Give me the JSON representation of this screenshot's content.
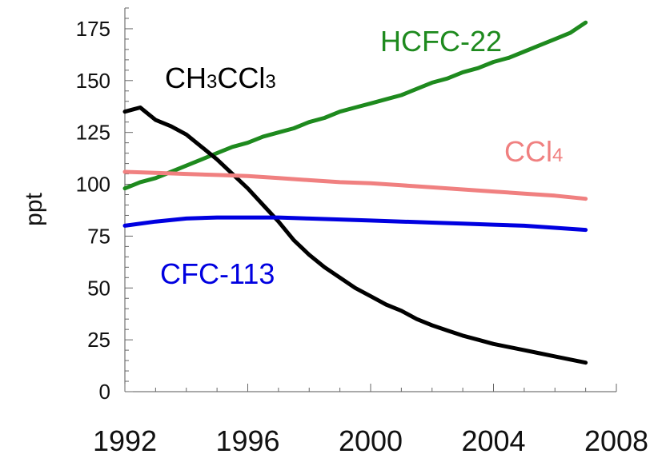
{
  "chart_data": {
    "type": "line",
    "title": "",
    "xlabel": "",
    "ylabel": "ppt",
    "xlim": [
      1992,
      2008
    ],
    "ylim": [
      0,
      185
    ],
    "xticks": [
      1992,
      1996,
      2000,
      2004,
      2008
    ],
    "yticks": [
      0,
      25,
      50,
      75,
      100,
      125,
      150,
      175
    ],
    "grid": false,
    "legend": "direct labels",
    "series": [
      {
        "name": "HCFC-22",
        "label_parts": [
          {
            "text": "HCFC-22",
            "sub": false
          }
        ],
        "color": "#1e8a1e",
        "x": [
          1992,
          1992.5,
          1993,
          1993.5,
          1994,
          1994.5,
          1995,
          1995.5,
          1996,
          1996.5,
          1997,
          1997.5,
          1998,
          1998.5,
          1999,
          1999.5,
          2000,
          2000.5,
          2001,
          2001.5,
          2002,
          2002.5,
          2003,
          2003.5,
          2004,
          2004.5,
          2005,
          2005.5,
          2006,
          2006.5,
          2007
        ],
        "y": [
          98,
          101,
          103,
          106,
          109,
          112,
          115,
          118,
          120,
          123,
          125,
          127,
          130,
          132,
          135,
          137,
          139,
          141,
          143,
          146,
          149,
          151,
          154,
          156,
          159,
          161,
          164,
          167,
          170,
          173,
          178
        ]
      },
      {
        "name": "CH3CCl3",
        "label_parts": [
          {
            "text": "CH",
            "sub": false
          },
          {
            "text": "3",
            "sub": true
          },
          {
            "text": "CCl",
            "sub": false
          },
          {
            "text": "3",
            "sub": true
          }
        ],
        "color": "#000000",
        "x": [
          1992,
          1992.25,
          1992.5,
          1992.75,
          1993,
          1993.5,
          1994,
          1994.5,
          1995,
          1995.5,
          1996,
          1996.5,
          1997,
          1997.5,
          1998,
          1998.5,
          1999,
          1999.5,
          2000,
          2000.5,
          2001,
          2001.5,
          2002,
          2002.5,
          2003,
          2003.5,
          2004,
          2004.5,
          2005,
          2005.5,
          2006,
          2006.5,
          2007
        ],
        "y": [
          135,
          136,
          137,
          134,
          131,
          128,
          124,
          118,
          112,
          105,
          98,
          90,
          82,
          73,
          66,
          60,
          55,
          50,
          46,
          42,
          39,
          35,
          32,
          29.5,
          27,
          25,
          23,
          21.5,
          20,
          18.5,
          17,
          15.5,
          14
        ]
      },
      {
        "name": "CCl4",
        "label_parts": [
          {
            "text": "CCl",
            "sub": false
          },
          {
            "text": "4",
            "sub": true
          }
        ],
        "color": "#f08080",
        "x": [
          1992,
          1993,
          1994,
          1995,
          1996,
          1997,
          1998,
          1999,
          2000,
          2001,
          2002,
          2003,
          2004,
          2005,
          2006,
          2007
        ],
        "y": [
          106,
          105.5,
          105,
          104.5,
          104,
          103,
          102,
          101,
          100.5,
          99.5,
          98.5,
          97.5,
          96.5,
          95.5,
          94.5,
          93
        ]
      },
      {
        "name": "CFC-113",
        "label_parts": [
          {
            "text": "CFC-113",
            "sub": false
          }
        ],
        "color": "#0000e0",
        "x": [
          1992,
          1993,
          1994,
          1995,
          1996,
          1997,
          1998,
          1999,
          2000,
          2001,
          2002,
          2003,
          2004,
          2005,
          2006,
          2007
        ],
        "y": [
          80,
          82,
          83.5,
          84,
          84,
          84,
          83.5,
          83,
          82.5,
          82,
          81.5,
          81,
          80.5,
          80,
          79,
          78
        ]
      }
    ]
  }
}
